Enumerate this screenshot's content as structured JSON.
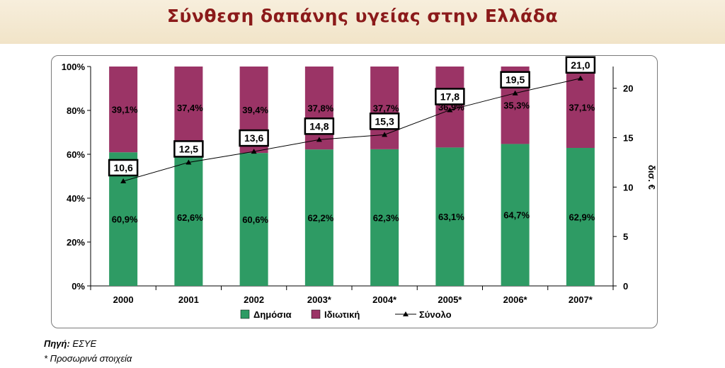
{
  "page": {
    "title": "Σύνθεση δαπάνης υγείας στην Ελλάδα"
  },
  "footer": {
    "source_label": "Πηγή:",
    "source_value": "ΕΣΥΕ",
    "note": "* Προσωρινά στοιχεία"
  },
  "colors": {
    "public": "#2e9b64",
    "private": "#9b3466",
    "line": "#000000"
  },
  "chart_data": {
    "type": "bar",
    "stacked": true,
    "categories": [
      "2000",
      "2001",
      "2002",
      "2003*",
      "2004*",
      "2005*",
      "2006*",
      "2007*"
    ],
    "series": [
      {
        "name": "Δημόσια",
        "values": [
          60.9,
          62.6,
          60.6,
          62.2,
          62.3,
          63.1,
          64.7,
          62.9
        ],
        "labels": [
          "60,9%",
          "62,6%",
          "60,6%",
          "62,2%",
          "62,3%",
          "63,1%",
          "64,7%",
          "62,9%"
        ]
      },
      {
        "name": "Ιδιωτική",
        "values": [
          39.1,
          37.4,
          39.4,
          37.8,
          37.7,
          36.9,
          35.3,
          37.1
        ],
        "labels": [
          "39,1%",
          "37,4%",
          "39,4%",
          "37,8%",
          "37,7%",
          "36,9%",
          "35,3%",
          "37,1%"
        ]
      },
      {
        "name": "Σύνολο",
        "type": "line",
        "axis": "right",
        "values": [
          10.6,
          12.5,
          13.6,
          14.8,
          15.3,
          17.8,
          19.5,
          21.0
        ],
        "labels": [
          "10,6",
          "12,5",
          "13,6",
          "14,8",
          "15,3",
          "17,8",
          "19,5",
          "21,0"
        ]
      }
    ],
    "left_axis": {
      "ylim": [
        0,
        100
      ],
      "ticks": [
        "0%",
        "20%",
        "40%",
        "60%",
        "80%",
        "100%"
      ]
    },
    "right_axis": {
      "ylim": [
        0,
        22.2
      ],
      "ticks": [
        "0",
        "5",
        "10",
        "15",
        "20"
      ],
      "label": "δισ. €"
    },
    "legend": {
      "position": "bottom",
      "entries": [
        "Δημόσια",
        "Ιδιωτική",
        "Σύνολο"
      ]
    },
    "grid": false
  }
}
